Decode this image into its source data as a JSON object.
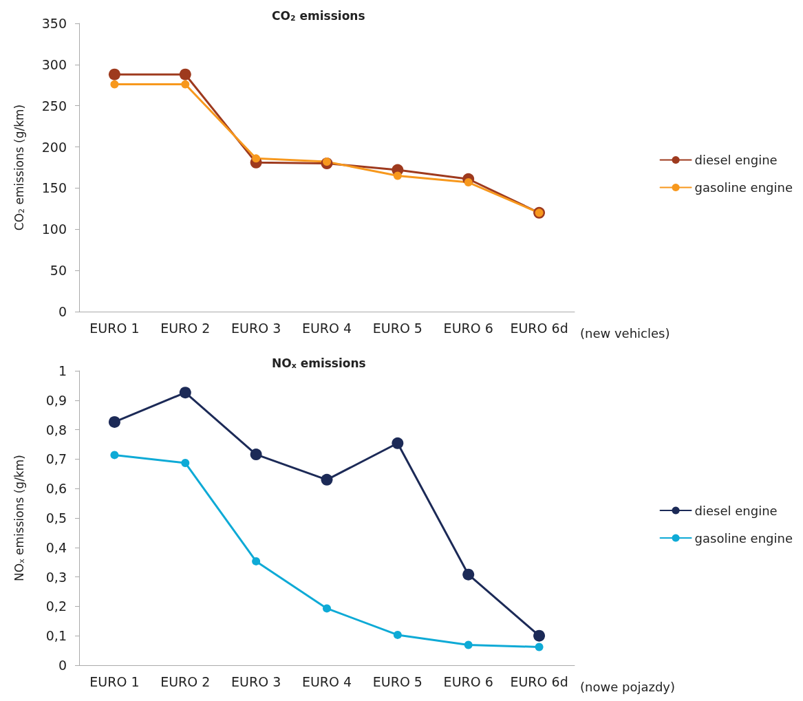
{
  "chart_data": [
    {
      "type": "line",
      "title": "CO$_{2}$ emissions",
      "ylabel": "CO$_{2}$ emissions (g/km)",
      "xlabel": "(new vehicles)",
      "categories": [
        "EURO 1",
        "EURO 2",
        "EURO 3",
        "EURO 4",
        "EURO 5",
        "EURO 6",
        "EURO 6d"
      ],
      "series": [
        {
          "name": "diesel engine",
          "color": "#9e3a1e",
          "values": [
            288,
            288,
            181,
            180,
            172,
            161,
            120
          ]
        },
        {
          "name": "gasoline engine",
          "color": "#f7981d",
          "values": [
            276,
            276,
            186,
            182,
            165,
            157,
            120
          ]
        }
      ],
      "ylim": [
        0,
        350
      ],
      "yticks": [
        0,
        50,
        100,
        150,
        200,
        250,
        300,
        350
      ],
      "grid": false,
      "legend": "right",
      "marker": "circle",
      "line_style": "solid"
    },
    {
      "type": "line",
      "title": "NO$_{x}$ emissions",
      "ylabel": "NO$_{x}$ emissions (g/km)",
      "xlabel": "(nowe pojazdy)",
      "categories": [
        "EURO 1",
        "EURO 2",
        "EURO 3",
        "EURO 4",
        "EURO 5",
        "EURO 6",
        "EURO 6d"
      ],
      "series": [
        {
          "name": "diesel engine",
          "color": "#1c2a57",
          "values": [
            0.826,
            0.926,
            0.716,
            0.63,
            0.754,
            0.308,
            0.1
          ]
        },
        {
          "name": "gasoline engine",
          "color": "#0eaad6",
          "values": [
            0.714,
            0.687,
            0.353,
            0.193,
            0.103,
            0.069,
            0.062
          ]
        }
      ],
      "ylim": [
        0,
        1
      ],
      "yticks": [
        0,
        {
          "value": 0.1,
          "label": "0,1"
        },
        {
          "value": 0.2,
          "label": "0,2"
        },
        {
          "value": 0.3,
          "label": "0,3"
        },
        {
          "value": 0.4,
          "label": "0,4"
        },
        {
          "value": 0.5,
          "label": "0,5"
        },
        {
          "value": 0.6,
          "label": "0,6"
        },
        {
          "value": 0.7,
          "label": "0,7"
        },
        {
          "value": 0.8,
          "label": "0,8"
        },
        {
          "value": 0.9,
          "label": "0,9"
        },
        1
      ],
      "grid": false,
      "legend": "right",
      "marker": "circle",
      "line_style": "solid"
    }
  ]
}
